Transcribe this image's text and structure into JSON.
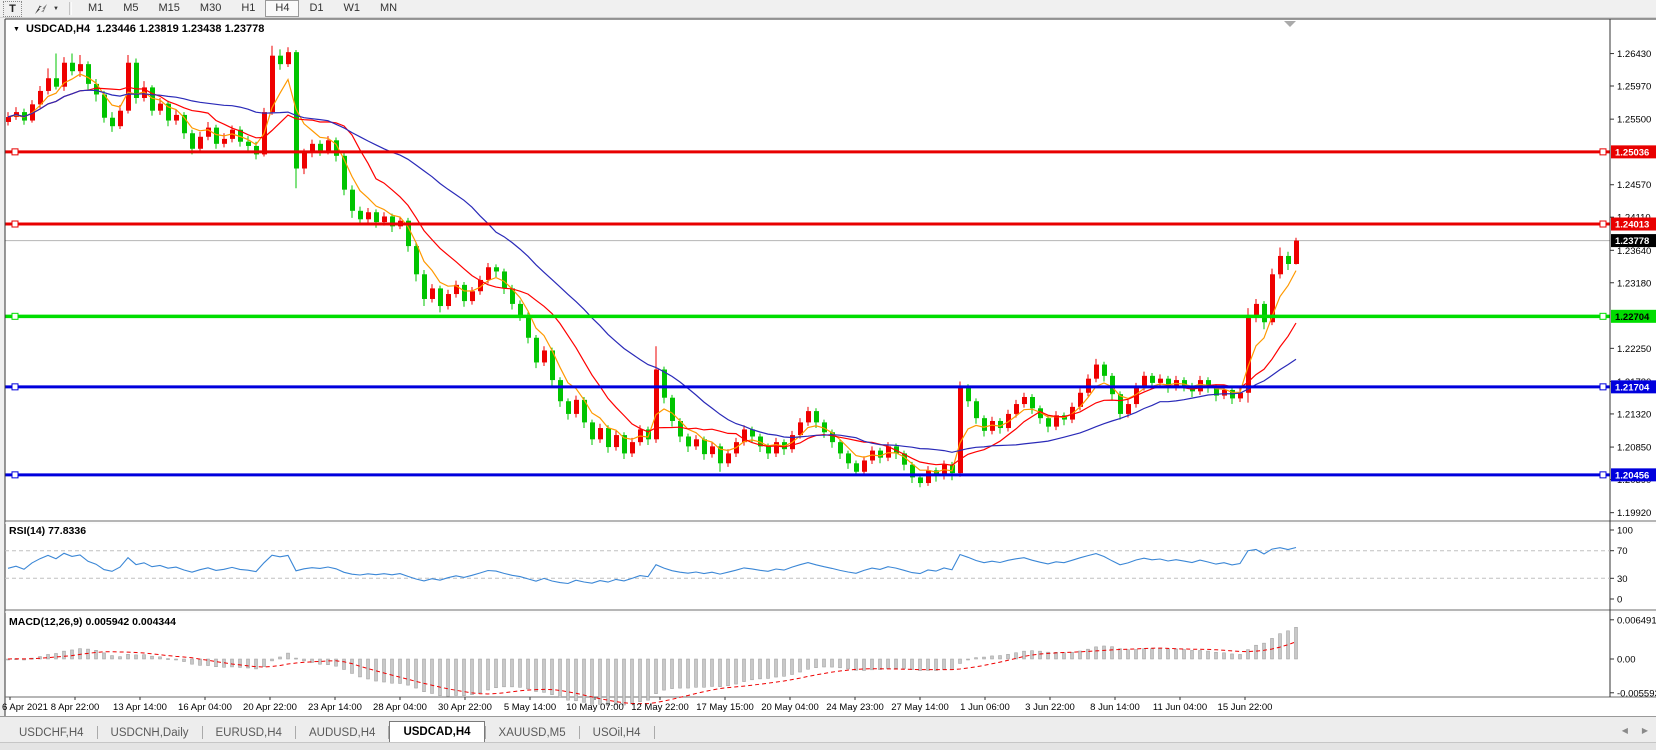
{
  "toolbar": {
    "text_tool": "T",
    "timeframes": [
      "M1",
      "M5",
      "M15",
      "M30",
      "H1",
      "H4",
      "D1",
      "W1",
      "MN"
    ],
    "active_timeframe": "H4"
  },
  "chart": {
    "symbol_period": "USDCAD,H4",
    "ohlc_text": "1.23446 1.23819 1.23438 1.23778",
    "open": "1.23446",
    "high": "1.23819",
    "low": "1.23438",
    "close": "1.23778"
  },
  "indicators": {
    "rsi": {
      "label": "RSI(14) 77.8336",
      "name": "RSI",
      "period": 14,
      "value": "77.8336",
      "levels": [
        70,
        30
      ],
      "axis_labels": [
        "100",
        "70",
        "30",
        "0"
      ],
      "line_color": "#3b87d6"
    },
    "macd": {
      "label": "MACD(12,26,9) 0.005942 0.004344",
      "value": "0.005942",
      "signal_value": "0.004344",
      "axis_labels": [
        "0.006491",
        "0.00",
        "-0.005593"
      ],
      "axis_max": 0.006491,
      "axis_min": -0.005593,
      "hist_color": "#c8c8c8",
      "hist_edge": "#9a9a9a",
      "signal_color": "#ee0000"
    }
  },
  "chart_data": {
    "type": "candlestick",
    "symbol": "USDCAD",
    "period": "H4",
    "up_color": "#ee0000",
    "down_color": "#00c400",
    "x_axis_labels": [
      "6 Apr 2021",
      "8 Apr 22:00",
      "13 Apr 14:00",
      "16 Apr 04:00",
      "20 Apr 22:00",
      "23 Apr 14:00",
      "28 Apr 04:00",
      "30 Apr 22:00",
      "5 May 14:00",
      "10 May 07:00",
      "12 May 22:00",
      "17 May 15:00",
      "20 May 04:00",
      "24 May 23:00",
      "27 May 14:00",
      "1 Jun 06:00",
      "3 Jun 22:00",
      "8 Jun 14:00",
      "11 Jun 04:00",
      "15 Jun 22:00"
    ],
    "y_axis_ticks": [
      "1.26430",
      "1.25970",
      "1.25500",
      "1.24570",
      "1.24110",
      "1.23640",
      "1.23180",
      "1.22250",
      "1.21780",
      "1.21320",
      "1.20850",
      "1.20390",
      "1.19920"
    ],
    "horizontal_lines": [
      {
        "label": "1.25036",
        "value": 1.25036,
        "color": "#e80000",
        "text_color": "#ffffff",
        "width": 3
      },
      {
        "label": "1.24013",
        "value": 1.24013,
        "color": "#e80000",
        "text_color": "#ffffff",
        "width": 3
      },
      {
        "label": "1.22704",
        "value": 1.22704,
        "color": "#00dd00",
        "text_color": "#000000",
        "width": 3.5
      },
      {
        "label": "1.21704",
        "value": 1.21704,
        "color": "#0000dd",
        "text_color": "#ffffff",
        "width": 3
      },
      {
        "label": "1.20456",
        "value": 1.20456,
        "color": "#0000dd",
        "text_color": "#ffffff",
        "width": 3
      }
    ],
    "current_price": {
      "label": "1.23778",
      "value": 1.23778,
      "box_color": "#000000",
      "text_color": "#ffffff",
      "line_color": "#b4b4b4"
    },
    "moving_averages": [
      {
        "name": "fast",
        "period": 5,
        "method": "ema",
        "color": "#ff9900"
      },
      {
        "name": "medium",
        "period": 11,
        "method": "sma",
        "color": "#ff0000"
      },
      {
        "name": "slow",
        "period": 26,
        "method": "sma",
        "color": "#2a2ab8"
      }
    ],
    "candles": [
      [
        1.2546,
        1.256,
        1.2541,
        1.2553
      ],
      [
        1.2553,
        1.2567,
        1.2549,
        1.256
      ],
      [
        1.256,
        1.2565,
        1.2542,
        1.2548
      ],
      [
        1.2548,
        1.2577,
        1.2545,
        1.2571
      ],
      [
        1.2571,
        1.2597,
        1.2566,
        1.259
      ],
      [
        1.259,
        1.2622,
        1.2585,
        1.2608
      ],
      [
        1.2608,
        1.2643,
        1.2592,
        1.2596
      ],
      [
        1.2596,
        1.2638,
        1.259,
        1.263
      ],
      [
        1.263,
        1.2643,
        1.2612,
        1.2618
      ],
      [
        1.2618,
        1.2641,
        1.261,
        1.2628
      ],
      [
        1.2628,
        1.2632,
        1.2592,
        1.26
      ],
      [
        1.26,
        1.2607,
        1.2575,
        1.2585
      ],
      [
        1.2585,
        1.259,
        1.2545,
        1.2552
      ],
      [
        1.2552,
        1.256,
        1.2532,
        1.254
      ],
      [
        1.254,
        1.257,
        1.2536,
        1.2562
      ],
      [
        1.2562,
        1.2641,
        1.2558,
        1.263
      ],
      [
        1.263,
        1.2636,
        1.2572,
        1.258
      ],
      [
        1.258,
        1.2604,
        1.2575,
        1.2595
      ],
      [
        1.2595,
        1.2598,
        1.2555,
        1.2562
      ],
      [
        1.2562,
        1.258,
        1.2556,
        1.2572
      ],
      [
        1.2572,
        1.2576,
        1.254,
        1.2548
      ],
      [
        1.2548,
        1.2563,
        1.2542,
        1.2556
      ],
      [
        1.2556,
        1.256,
        1.2522,
        1.253
      ],
      [
        1.253,
        1.2535,
        1.25,
        1.2508
      ],
      [
        1.2508,
        1.2532,
        1.2503,
        1.2525
      ],
      [
        1.2525,
        1.2546,
        1.252,
        1.2538
      ],
      [
        1.2538,
        1.2542,
        1.2508,
        1.2515
      ],
      [
        1.2515,
        1.253,
        1.251,
        1.2522
      ],
      [
        1.2522,
        1.2541,
        1.2517,
        1.2535
      ],
      [
        1.2535,
        1.254,
        1.2511,
        1.2518
      ],
      [
        1.2518,
        1.2526,
        1.2505,
        1.2512
      ],
      [
        1.2512,
        1.2518,
        1.2493,
        1.25
      ],
      [
        1.25,
        1.2566,
        1.2497,
        1.256
      ],
      [
        1.256,
        1.2654,
        1.2556,
        1.264
      ],
      [
        1.264,
        1.2649,
        1.262,
        1.2628
      ],
      [
        1.2628,
        1.2652,
        1.2624,
        1.2645
      ],
      [
        1.2645,
        1.2648,
        1.2452,
        1.248
      ],
      [
        1.248,
        1.2508,
        1.2472,
        1.2502
      ],
      [
        1.2502,
        1.2521,
        1.2496,
        1.2515
      ],
      [
        1.2515,
        1.252,
        1.2498,
        1.2505
      ],
      [
        1.2505,
        1.2526,
        1.25,
        1.252
      ],
      [
        1.252,
        1.2524,
        1.249,
        1.2498
      ],
      [
        1.2498,
        1.2502,
        1.2442,
        1.245
      ],
      [
        1.245,
        1.2456,
        1.241,
        1.242
      ],
      [
        1.242,
        1.2426,
        1.24,
        1.2408
      ],
      [
        1.2408,
        1.2424,
        1.2402,
        1.2418
      ],
      [
        1.2418,
        1.2422,
        1.2396,
        1.2404
      ],
      [
        1.2404,
        1.2418,
        1.2399,
        1.2412
      ],
      [
        1.2412,
        1.2416,
        1.239,
        1.2398
      ],
      [
        1.2398,
        1.2412,
        1.2394,
        1.2406
      ],
      [
        1.2406,
        1.241,
        1.2362,
        1.237
      ],
      [
        1.237,
        1.2375,
        1.232,
        1.233
      ],
      [
        1.233,
        1.2336,
        1.2285,
        1.2295
      ],
      [
        1.2295,
        1.2316,
        1.229,
        1.231
      ],
      [
        1.231,
        1.2314,
        1.2276,
        1.2285
      ],
      [
        1.2285,
        1.2308,
        1.228,
        1.2302
      ],
      [
        1.2302,
        1.2321,
        1.2297,
        1.2315
      ],
      [
        1.2315,
        1.2319,
        1.2284,
        1.2292
      ],
      [
        1.2292,
        1.2312,
        1.2287,
        1.2306
      ],
      [
        1.2306,
        1.2328,
        1.2301,
        1.2322
      ],
      [
        1.2322,
        1.2346,
        1.2317,
        1.234
      ],
      [
        1.234,
        1.2344,
        1.2326,
        1.2334
      ],
      [
        1.2334,
        1.2338,
        1.2302,
        1.231
      ],
      [
        1.231,
        1.2315,
        1.228,
        1.2288
      ],
      [
        1.2288,
        1.2293,
        1.2264,
        1.2272
      ],
      [
        1.2272,
        1.2276,
        1.2232,
        1.224
      ],
      [
        1.224,
        1.2244,
        1.2197,
        1.2205
      ],
      [
        1.2205,
        1.2228,
        1.22,
        1.2222
      ],
      [
        1.2222,
        1.2226,
        1.2172,
        1.218
      ],
      [
        1.218,
        1.2184,
        1.2142,
        1.215
      ],
      [
        1.215,
        1.2154,
        1.2124,
        1.2132
      ],
      [
        1.2132,
        1.2158,
        1.2127,
        1.2152
      ],
      [
        1.2152,
        1.2156,
        1.2112,
        1.212
      ],
      [
        1.212,
        1.2124,
        1.2088,
        1.2096
      ],
      [
        1.2096,
        1.2118,
        1.2091,
        1.2112
      ],
      [
        1.2112,
        1.2116,
        1.2077,
        1.2085
      ],
      [
        1.2085,
        1.2108,
        1.208,
        1.2102
      ],
      [
        1.2102,
        1.2106,
        1.2068,
        1.2076
      ],
      [
        1.2076,
        1.2098,
        1.2071,
        1.2092
      ],
      [
        1.2092,
        1.2116,
        1.2087,
        1.211
      ],
      [
        1.211,
        1.2114,
        1.2088,
        1.2096
      ],
      [
        1.2096,
        1.2228,
        1.2091,
        1.2195
      ],
      [
        1.2195,
        1.2199,
        1.2147,
        1.2155
      ],
      [
        1.2155,
        1.2159,
        1.2114,
        1.2122
      ],
      [
        1.2122,
        1.2126,
        1.2092,
        1.21
      ],
      [
        1.21,
        1.2104,
        1.2078,
        1.2086
      ],
      [
        1.2086,
        1.2102,
        1.2081,
        1.2096
      ],
      [
        1.2096,
        1.21,
        1.2067,
        1.2075
      ],
      [
        1.2075,
        1.2092,
        1.207,
        1.2086
      ],
      [
        1.2086,
        1.209,
        1.205,
        1.2062
      ],
      [
        1.2062,
        1.2082,
        1.2057,
        1.2076
      ],
      [
        1.2076,
        1.2098,
        1.2071,
        1.2092
      ],
      [
        1.2092,
        1.2116,
        1.2087,
        1.211
      ],
      [
        1.211,
        1.2114,
        1.2092,
        1.21
      ],
      [
        1.21,
        1.2104,
        1.2078,
        1.2086
      ],
      [
        1.2086,
        1.209,
        1.2068,
        1.2076
      ],
      [
        1.2076,
        1.2098,
        1.2071,
        1.2092
      ],
      [
        1.2092,
        1.2096,
        1.2074,
        1.2082
      ],
      [
        1.2082,
        1.2108,
        1.2077,
        1.2102
      ],
      [
        1.2102,
        1.2126,
        1.2097,
        1.212
      ],
      [
        1.212,
        1.2142,
        1.2115,
        1.2136
      ],
      [
        1.2136,
        1.214,
        1.2112,
        1.212
      ],
      [
        1.212,
        1.2124,
        1.2098,
        1.2106
      ],
      [
        1.2106,
        1.211,
        1.2084,
        1.2092
      ],
      [
        1.2092,
        1.2096,
        1.2068,
        1.2076
      ],
      [
        1.2076,
        1.208,
        1.2054,
        1.2062
      ],
      [
        1.2062,
        1.2066,
        1.2044,
        1.205
      ],
      [
        1.205,
        1.2072,
        1.2045,
        1.2066
      ],
      [
        1.2066,
        1.2086,
        1.2061,
        1.208
      ],
      [
        1.208,
        1.2084,
        1.2062,
        1.207
      ],
      [
        1.207,
        1.2092,
        1.2065,
        1.2086
      ],
      [
        1.2086,
        1.209,
        1.2068,
        1.2076
      ],
      [
        1.2076,
        1.208,
        1.2052,
        1.206
      ],
      [
        1.206,
        1.2064,
        1.2034,
        1.2042
      ],
      [
        1.2042,
        1.2046,
        1.2028,
        1.2034
      ],
      [
        1.2034,
        1.2058,
        1.203,
        1.2052
      ],
      [
        1.2052,
        1.2056,
        1.2036,
        1.2044
      ],
      [
        1.2044,
        1.2066,
        1.2039,
        1.206
      ],
      [
        1.206,
        1.2064,
        1.2038,
        1.2048
      ],
      [
        1.2048,
        1.2178,
        1.2043,
        1.217
      ],
      [
        1.217,
        1.2174,
        1.2142,
        1.215
      ],
      [
        1.215,
        1.2154,
        1.2118,
        1.2126
      ],
      [
        1.2126,
        1.213,
        1.21,
        1.2108
      ],
      [
        1.2108,
        1.2128,
        1.2103,
        1.2122
      ],
      [
        1.2122,
        1.2126,
        1.2104,
        1.2112
      ],
      [
        1.2112,
        1.2138,
        1.2107,
        1.2132
      ],
      [
        1.2132,
        1.2152,
        1.2127,
        1.2146
      ],
      [
        1.2146,
        1.2162,
        1.2141,
        1.2156
      ],
      [
        1.2156,
        1.216,
        1.2132,
        1.214
      ],
      [
        1.214,
        1.2144,
        1.2118,
        1.2126
      ],
      [
        1.2126,
        1.213,
        1.2106,
        1.2114
      ],
      [
        1.2114,
        1.2136,
        1.2109,
        1.213
      ],
      [
        1.213,
        1.2134,
        1.2116,
        1.2124
      ],
      [
        1.2124,
        1.2148,
        1.2119,
        1.2142
      ],
      [
        1.2142,
        1.2168,
        1.2137,
        1.2162
      ],
      [
        1.2162,
        1.2188,
        1.2157,
        1.2182
      ],
      [
        1.2182,
        1.221,
        1.2177,
        1.2202
      ],
      [
        1.2202,
        1.2206,
        1.2178,
        1.2186
      ],
      [
        1.2186,
        1.219,
        1.2152,
        1.216
      ],
      [
        1.216,
        1.2164,
        1.2124,
        1.2132
      ],
      [
        1.2132,
        1.2152,
        1.2127,
        1.2146
      ],
      [
        1.2146,
        1.2176,
        1.2141,
        1.217
      ],
      [
        1.217,
        1.2192,
        1.2165,
        1.2186
      ],
      [
        1.2186,
        1.219,
        1.2168,
        1.2176
      ],
      [
        1.2176,
        1.2188,
        1.217,
        1.2182
      ],
      [
        1.2182,
        1.2186,
        1.2162,
        1.217
      ],
      [
        1.217,
        1.2186,
        1.2165,
        1.218
      ],
      [
        1.218,
        1.2184,
        1.2164,
        1.2172
      ],
      [
        1.2172,
        1.2176,
        1.2156,
        1.2164
      ],
      [
        1.2164,
        1.2186,
        1.2159,
        1.218
      ],
      [
        1.218,
        1.2184,
        1.2162,
        1.217
      ],
      [
        1.217,
        1.2174,
        1.215,
        1.2158
      ],
      [
        1.2158,
        1.2172,
        1.2153,
        1.2166
      ],
      [
        1.2166,
        1.217,
        1.2146,
        1.2154
      ],
      [
        1.2154,
        1.2168,
        1.2149,
        1.2162
      ],
      [
        1.2162,
        1.2282,
        1.2148,
        1.2272
      ],
      [
        1.2272,
        1.2295,
        1.2262,
        1.2288
      ],
      [
        1.2288,
        1.2292,
        1.2252,
        1.2262
      ],
      [
        1.2262,
        1.2338,
        1.2258,
        1.233
      ],
      [
        1.233,
        1.2368,
        1.2324,
        1.2356
      ],
      [
        1.2356,
        1.2362,
        1.2336,
        1.23446
      ],
      [
        1.23446,
        1.23819,
        1.23438,
        1.23778
      ]
    ]
  },
  "tabbar": {
    "tabs": [
      {
        "label": "USDCHF,H4",
        "active": false
      },
      {
        "label": "USDCNH,Daily",
        "active": false
      },
      {
        "label": "EURUSD,H4",
        "active": false
      },
      {
        "label": "AUDUSD,H4",
        "active": false
      },
      {
        "label": "USDCAD,H4",
        "active": true
      },
      {
        "label": "XAUUSD,M5",
        "active": false
      },
      {
        "label": "USOil,H4",
        "active": false
      }
    ]
  }
}
